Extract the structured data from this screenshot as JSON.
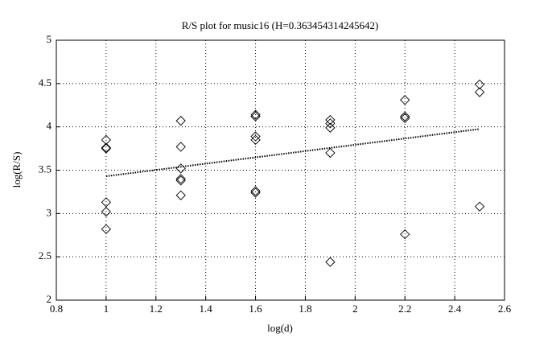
{
  "chart_data": {
    "type": "scatter",
    "title": "R/S plot for music16 (H=0.363454314245642)",
    "x_label": "log(d)",
    "y_label": "log(R/S)",
    "x": [
      1,
      1,
      1,
      1,
      1,
      1,
      1.3,
      1.3,
      1.3,
      1.3,
      1.3,
      1.3,
      1.6,
      1.6,
      1.6,
      1.6,
      1.6,
      1.6,
      1.9,
      1.9,
      1.9,
      1.9,
      1.9,
      2.2,
      2.2,
      2.2,
      2.2,
      2.5,
      2.5,
      2.5
    ],
    "values": [
      3.85,
      3.76,
      3.75,
      3.13,
      3.02,
      2.82,
      4.07,
      3.77,
      3.52,
      3.4,
      3.38,
      3.21,
      4.14,
      4.12,
      3.89,
      3.85,
      3.26,
      3.24,
      4.08,
      4.04,
      3.99,
      3.7,
      2.44,
      4.31,
      4.12,
      4.1,
      2.76,
      4.49,
      4.4,
      3.08
    ],
    "color": "#000000",
    "trend_line": {
      "x": [
        1,
        2.5
      ],
      "values": [
        3.43,
        3.975
      ]
    },
    "xlim": [
      0.8,
      2.6
    ],
    "xticks": [
      0.8,
      1,
      1.2,
      1.4,
      1.6,
      1.8,
      2,
      2.2,
      2.4,
      2.6
    ],
    "ylim": [
      2,
      5
    ],
    "yticks": [
      2,
      2.5,
      3,
      3.5,
      4,
      4.5,
      5
    ],
    "grid": true
  }
}
